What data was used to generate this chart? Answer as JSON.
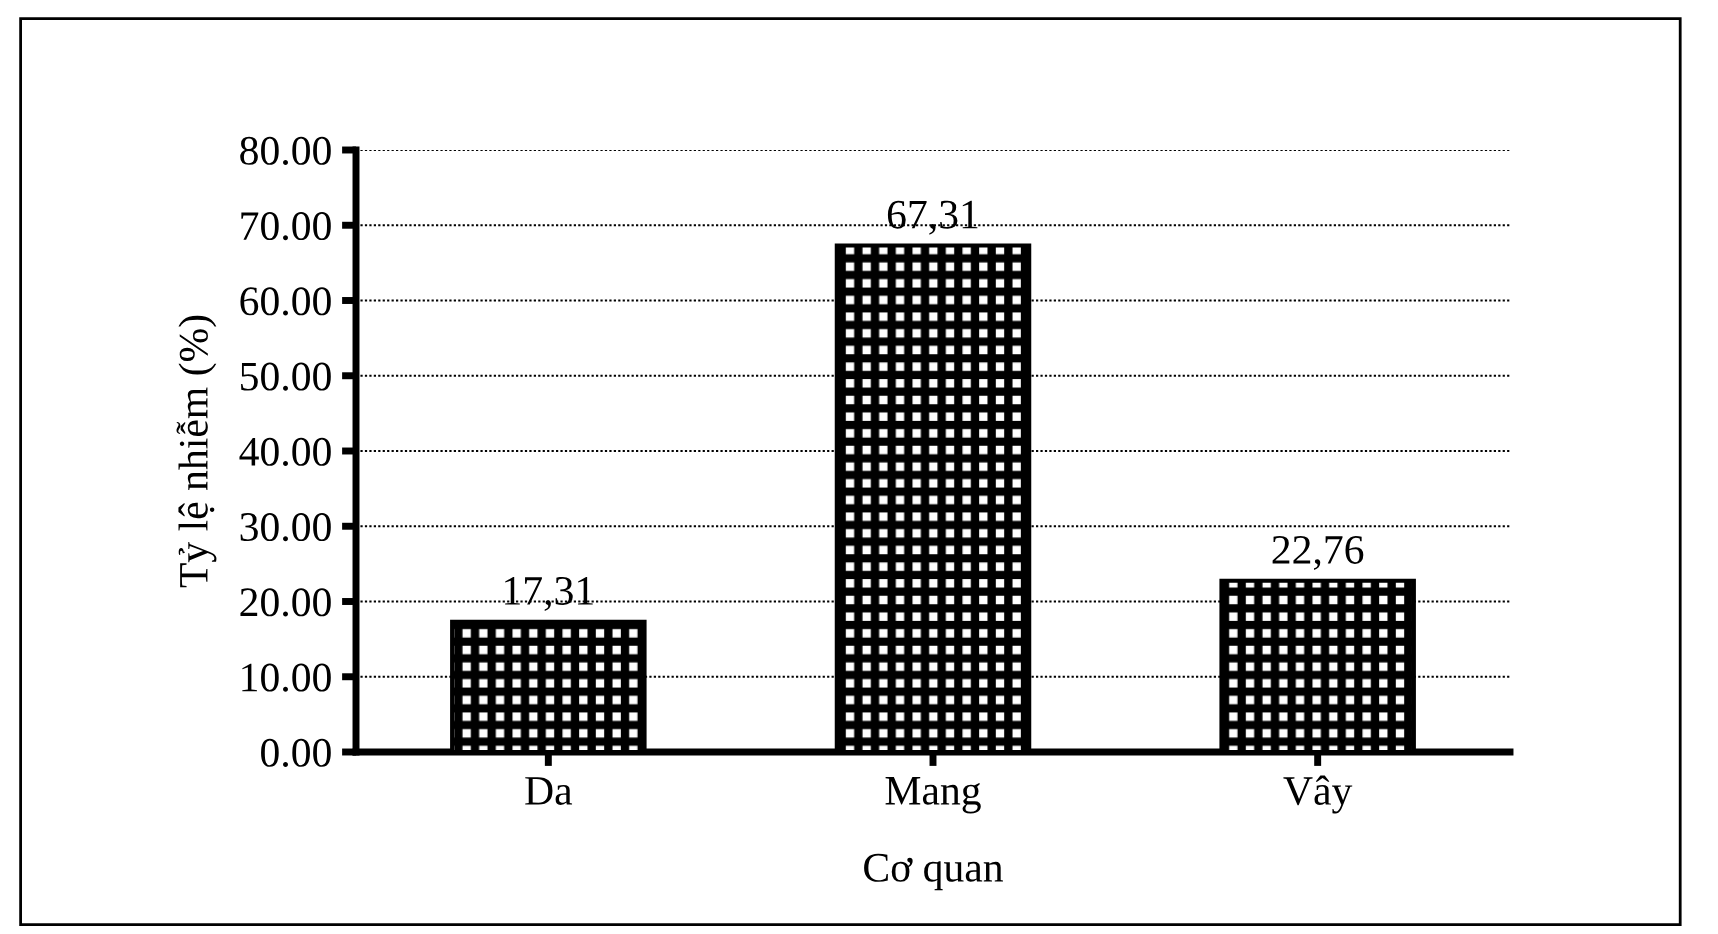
{
  "chart_data": {
    "type": "bar",
    "xlabel": "Cơ quan",
    "ylabel": "Tỷ lệ nhiễm (%)",
    "categories": [
      "Da",
      "Mang",
      "Vây"
    ],
    "values": [
      17.31,
      67.31,
      22.76
    ],
    "value_labels": [
      "17,31",
      "67,31",
      "22,76"
    ],
    "color": "#000000",
    "ylim": [
      0,
      80
    ],
    "yticks": [
      {
        "value": 0,
        "label": "0.00"
      },
      {
        "value": 10,
        "label": "10.00"
      },
      {
        "value": 20,
        "label": "20.00"
      },
      {
        "value": 30,
        "label": "30.00"
      },
      {
        "value": 40,
        "label": "40.00"
      },
      {
        "value": 50,
        "label": "50.00"
      },
      {
        "value": 60,
        "label": "60.00"
      },
      {
        "value": 70,
        "label": "70.00"
      },
      {
        "value": 80,
        "label": "80.00"
      }
    ],
    "grid": "y",
    "legend": false
  }
}
